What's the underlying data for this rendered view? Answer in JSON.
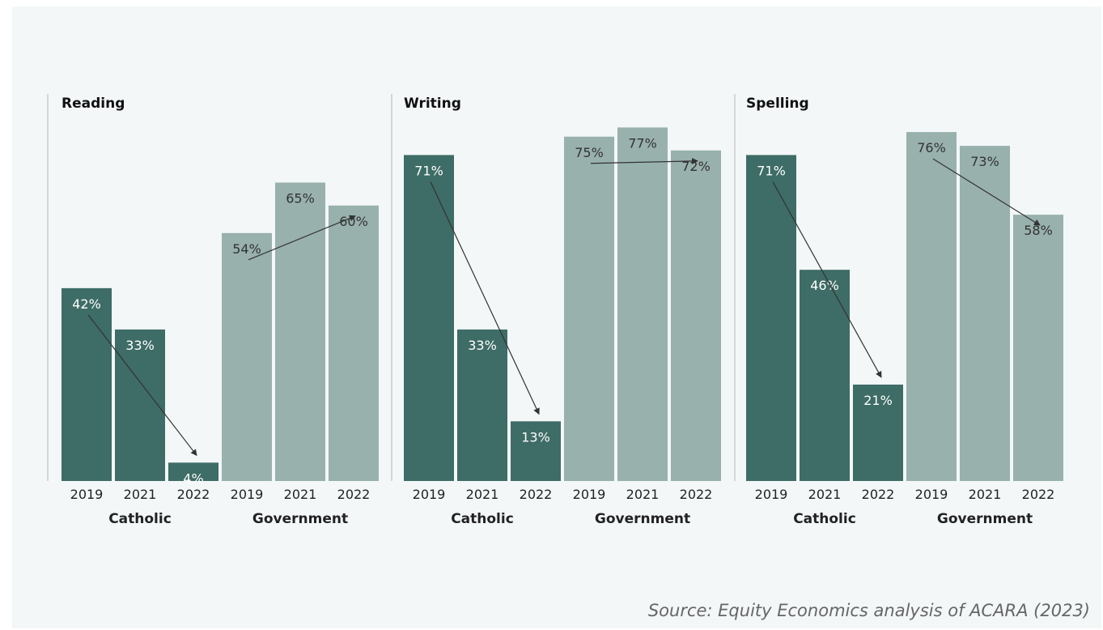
{
  "source": "Source: Equity Economics analysis of ACARA (2023)",
  "colors": {
    "catholic": "#3e6c66",
    "government": "#98b1ad",
    "label_on_dark": "#ffffff",
    "label_on_light": "#333333",
    "axis": "#cccccc",
    "arrow": "#333333"
  },
  "chart_data": [
    {
      "type": "bar",
      "title": "Reading",
      "x": [
        "2019",
        "2021",
        "2022",
        "2019",
        "2021",
        "2022"
      ],
      "groups": [
        "Catholic",
        "Government"
      ],
      "series": [
        {
          "name": "Catholic",
          "x": [
            "2019",
            "2021",
            "2022"
          ],
          "values": [
            42,
            33,
            4
          ],
          "labels": [
            "42%",
            "33%",
            "4%"
          ]
        },
        {
          "name": "Government",
          "x": [
            "2019",
            "2021",
            "2022"
          ],
          "values": [
            54,
            65,
            60
          ],
          "labels": [
            "54%",
            "65%",
            "60%"
          ]
        }
      ],
      "ylim": [
        0,
        85
      ],
      "annotations": [
        "Catholic trend arrow 2019→2022",
        "Government trend arrow 2019→2022"
      ]
    },
    {
      "type": "bar",
      "title": "Writing",
      "x": [
        "2019",
        "2021",
        "2022",
        "2019",
        "2021",
        "2022"
      ],
      "groups": [
        "Catholic",
        "Government"
      ],
      "series": [
        {
          "name": "Catholic",
          "x": [
            "2019",
            "2021",
            "2022"
          ],
          "values": [
            71,
            33,
            13
          ],
          "labels": [
            "71%",
            "33%",
            "13%"
          ]
        },
        {
          "name": "Government",
          "x": [
            "2019",
            "2021",
            "2022"
          ],
          "values": [
            75,
            77,
            72
          ],
          "labels": [
            "75%",
            "77%",
            "72%"
          ]
        }
      ],
      "ylim": [
        0,
        85
      ],
      "annotations": [
        "Catholic trend arrow 2019→2022",
        "Government trend arrow 2019→2022"
      ]
    },
    {
      "type": "bar",
      "title": "Spelling",
      "x": [
        "2019",
        "2021",
        "2022",
        "2019",
        "2021",
        "2022"
      ],
      "groups": [
        "Catholic",
        "Government"
      ],
      "series": [
        {
          "name": "Catholic",
          "x": [
            "2019",
            "2021",
            "2022"
          ],
          "values": [
            71,
            46,
            21
          ],
          "labels": [
            "71%",
            "46%",
            "21%"
          ]
        },
        {
          "name": "Government",
          "x": [
            "2019",
            "2021",
            "2022"
          ],
          "values": [
            76,
            73,
            58
          ],
          "labels": [
            "76%",
            "73%",
            "58%"
          ]
        }
      ],
      "ylim": [
        0,
        85
      ],
      "annotations": [
        "Catholic trend arrow 2019→2022",
        "Government trend arrow 2019→2022"
      ]
    }
  ]
}
